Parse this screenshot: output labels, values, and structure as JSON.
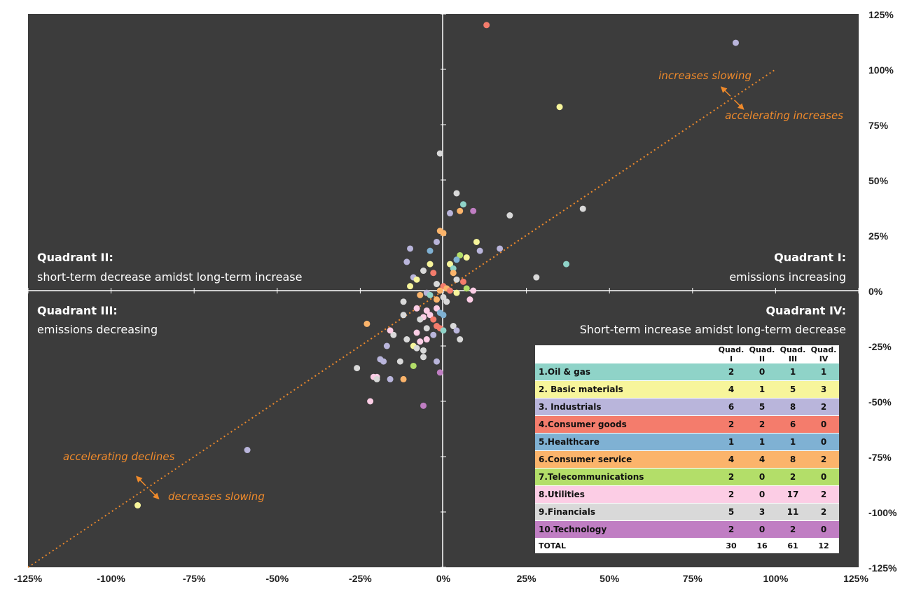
{
  "chart_data": {
    "type": "scatter",
    "xlim": [
      -125,
      125
    ],
    "ylim": [
      -125,
      125
    ],
    "x_ticks": [
      "-125%",
      "-100%",
      "-75%",
      "-50%",
      "-25%",
      "0%",
      "25%",
      "50%",
      "75%",
      "100%",
      "125%"
    ],
    "y_ticks": [
      "125%",
      "100%",
      "75%",
      "50%",
      "25%",
      "0%",
      "-25%",
      "-50%",
      "-75%",
      "-100%",
      "-125%"
    ],
    "reference_line": {
      "x": [
        -125,
        100
      ],
      "y": [
        -125,
        100
      ],
      "style": "dotted",
      "color": "#ef8a2b"
    },
    "quadrants": {
      "q1": {
        "title": "Quadrant I:",
        "desc": "emissions increasing"
      },
      "q2": {
        "title": "Quadrant II:",
        "desc": "short-term decrease amidst long-term increase"
      },
      "q3": {
        "title": "Quadrant III:",
        "desc": "emissions decreasing"
      },
      "q4": {
        "title": "Quadrant IV:",
        "desc": "Short-term increase amidst long-term decrease"
      }
    },
    "annotations": {
      "increases_slowing": "increases slowing",
      "accelerating_increases": "accelerating increases",
      "accelerating_declines": "accelerating declines",
      "decreases_slowing": "decreases slowing"
    },
    "points": [
      {
        "x": 13,
        "y": 120,
        "c": "#f47c6c"
      },
      {
        "x": 88,
        "y": 112,
        "c": "#b9b5db"
      },
      {
        "x": 35,
        "y": 83,
        "c": "#f7f59b"
      },
      {
        "x": -1,
        "y": 62,
        "c": "#d9d9d9"
      },
      {
        "x": 4,
        "y": 44,
        "c": "#d9d9d9"
      },
      {
        "x": 6,
        "y": 39,
        "c": "#8fd3c8"
      },
      {
        "x": 2,
        "y": 35,
        "c": "#b9b5db"
      },
      {
        "x": 9,
        "y": 36,
        "c": "#c07ec3"
      },
      {
        "x": 5,
        "y": 36,
        "c": "#fbb46b"
      },
      {
        "x": 20,
        "y": 34,
        "c": "#d9d9d9"
      },
      {
        "x": 42,
        "y": 37,
        "c": "#d9d9d9"
      },
      {
        "x": -1,
        "y": 27,
        "c": "#fbb46b"
      },
      {
        "x": 0,
        "y": 26,
        "c": "#fbb46b"
      },
      {
        "x": -2,
        "y": 22,
        "c": "#b9b5db"
      },
      {
        "x": 10,
        "y": 22,
        "c": "#f7f59b"
      },
      {
        "x": -10,
        "y": 19,
        "c": "#b9b5db"
      },
      {
        "x": -4,
        "y": 18,
        "c": "#7fb1d3"
      },
      {
        "x": 11,
        "y": 18,
        "c": "#b9b5db"
      },
      {
        "x": 17,
        "y": 19,
        "c": "#b9b5db"
      },
      {
        "x": 5,
        "y": 16,
        "c": "#b3de69"
      },
      {
        "x": 7,
        "y": 15,
        "c": "#f7f59b"
      },
      {
        "x": 4,
        "y": 14,
        "c": "#7fb1d3"
      },
      {
        "x": -11,
        "y": 13,
        "c": "#b9b5db"
      },
      {
        "x": -4,
        "y": 12,
        "c": "#f7f59b"
      },
      {
        "x": 2,
        "y": 12,
        "c": "#f7f59b"
      },
      {
        "x": 3,
        "y": 10,
        "c": "#8fd3c8"
      },
      {
        "x": -6,
        "y": 9,
        "c": "#d9d9d9"
      },
      {
        "x": -3,
        "y": 8,
        "c": "#f47c6c"
      },
      {
        "x": 3,
        "y": 8,
        "c": "#fbb46b"
      },
      {
        "x": 37,
        "y": 12,
        "c": "#8fd3c8"
      },
      {
        "x": -9,
        "y": 6,
        "c": "#b9b5db"
      },
      {
        "x": -8,
        "y": 5,
        "c": "#f7f59b"
      },
      {
        "x": 4,
        "y": 5,
        "c": "#d9d9d9"
      },
      {
        "x": 6,
        "y": 4,
        "c": "#f47c6c"
      },
      {
        "x": 28,
        "y": 6,
        "c": "#d9d9d9"
      },
      {
        "x": -10,
        "y": 2,
        "c": "#f7f59b"
      },
      {
        "x": -2,
        "y": 3,
        "c": "#d9d9d9"
      },
      {
        "x": 0,
        "y": 2,
        "c": "#f47c6c"
      },
      {
        "x": 1,
        "y": 1,
        "c": "#fbb46b"
      },
      {
        "x": -1,
        "y": 0,
        "c": "#fbb46b"
      },
      {
        "x": 2,
        "y": 0,
        "c": "#f47c6c"
      },
      {
        "x": 4,
        "y": -1,
        "c": "#f7f59b"
      },
      {
        "x": 7,
        "y": 1,
        "c": "#b3de69"
      },
      {
        "x": 9,
        "y": 0,
        "c": "#fccde5"
      },
      {
        "x": -5,
        "y": -1,
        "c": "#b9b5db"
      },
      {
        "x": -4,
        "y": -2,
        "c": "#8fd3c8"
      },
      {
        "x": -7,
        "y": -2,
        "c": "#fbb46b"
      },
      {
        "x": -2,
        "y": -4,
        "c": "#fbb46b"
      },
      {
        "x": 0,
        "y": -3,
        "c": "#d9d9d9"
      },
      {
        "x": 1,
        "y": -5,
        "c": "#d9d9d9"
      },
      {
        "x": 8,
        "y": -4,
        "c": "#fccde5"
      },
      {
        "x": -12,
        "y": -5,
        "c": "#d9d9d9"
      },
      {
        "x": -8,
        "y": -8,
        "c": "#fccde5"
      },
      {
        "x": -5,
        "y": -9,
        "c": "#fccde5"
      },
      {
        "x": -2,
        "y": -8,
        "c": "#fccde5"
      },
      {
        "x": -6,
        "y": -12,
        "c": "#fccde5"
      },
      {
        "x": -4,
        "y": -11,
        "c": "#fccde5"
      },
      {
        "x": -1,
        "y": -10,
        "c": "#7fb1d3"
      },
      {
        "x": 0,
        "y": -11,
        "c": "#7fb1d3"
      },
      {
        "x": -3,
        "y": -13,
        "c": "#f47c6c"
      },
      {
        "x": -7,
        "y": -13,
        "c": "#d9d9d9"
      },
      {
        "x": -12,
        "y": -11,
        "c": "#d9d9d9"
      },
      {
        "x": -2,
        "y": -16,
        "c": "#f47c6c"
      },
      {
        "x": -1,
        "y": -17,
        "c": "#f47c6c"
      },
      {
        "x": 0,
        "y": -18,
        "c": "#8fd3c8"
      },
      {
        "x": 3,
        "y": -16,
        "c": "#d9d9d9"
      },
      {
        "x": 4,
        "y": -18,
        "c": "#b9b5db"
      },
      {
        "x": -5,
        "y": -17,
        "c": "#d9d9d9"
      },
      {
        "x": -3,
        "y": -20,
        "c": "#b9b5db"
      },
      {
        "x": -8,
        "y": -19,
        "c": "#fccde5"
      },
      {
        "x": -15,
        "y": -20,
        "c": "#d9d9d9"
      },
      {
        "x": -16,
        "y": -18,
        "c": "#fccde5"
      },
      {
        "x": -11,
        "y": -22,
        "c": "#d9d9d9"
      },
      {
        "x": -7,
        "y": -23,
        "c": "#fccde5"
      },
      {
        "x": -5,
        "y": -22,
        "c": "#fccde5"
      },
      {
        "x": 5,
        "y": -22,
        "c": "#d9d9d9"
      },
      {
        "x": -9,
        "y": -25,
        "c": "#f7f59b"
      },
      {
        "x": -8,
        "y": -26,
        "c": "#d9d9d9"
      },
      {
        "x": -17,
        "y": -25,
        "c": "#b9b5db"
      },
      {
        "x": -6,
        "y": -27,
        "c": "#d9d9d9"
      },
      {
        "x": -6,
        "y": -30,
        "c": "#d9d9d9"
      },
      {
        "x": -2,
        "y": -32,
        "c": "#b9b5db"
      },
      {
        "x": -19,
        "y": -31,
        "c": "#b9b5db"
      },
      {
        "x": -18,
        "y": -32,
        "c": "#b9b5db"
      },
      {
        "x": -13,
        "y": -32,
        "c": "#d9d9d9"
      },
      {
        "x": -9,
        "y": -34,
        "c": "#b3de69"
      },
      {
        "x": -1,
        "y": -37,
        "c": "#c07ec3"
      },
      {
        "x": -26,
        "y": -35,
        "c": "#d9d9d9"
      },
      {
        "x": -21,
        "y": -39,
        "c": "#fccde5"
      },
      {
        "x": -20,
        "y": -39,
        "c": "#fccde5"
      },
      {
        "x": -20,
        "y": -40,
        "c": "#d9d9d9"
      },
      {
        "x": -16,
        "y": -40,
        "c": "#b9b5db"
      },
      {
        "x": -12,
        "y": -40,
        "c": "#fbb46b"
      },
      {
        "x": -22,
        "y": -50,
        "c": "#fccde5"
      },
      {
        "x": -6,
        "y": -52,
        "c": "#c07ec3"
      },
      {
        "x": -23,
        "y": -15,
        "c": "#fbb46b"
      },
      {
        "x": -59,
        "y": -72,
        "c": "#b9b5db"
      },
      {
        "x": -92,
        "y": -97,
        "c": "#f7f59b"
      }
    ],
    "table": {
      "headers": [
        "",
        "Quad. I",
        "Quad. II",
        "Quad. III",
        "Quad. IV"
      ],
      "rows": [
        {
          "label": "1.Oil & gas",
          "color": "#8fd3c8",
          "q1": "2",
          "q2": "0",
          "q3": "1",
          "q4": "1"
        },
        {
          "label": "2. Basic materials",
          "color": "#f7f59b",
          "q1": "4",
          "q2": "1",
          "q3": "5",
          "q4": "3"
        },
        {
          "label": "3. Industrials",
          "color": "#b9b5db",
          "q1": "6",
          "q2": "5",
          "q3": "8",
          "q4": "2"
        },
        {
          "label": "4.Consumer goods",
          "color": "#f47c6c",
          "q1": "2",
          "q2": "2",
          "q3": "6",
          "q4": "0"
        },
        {
          "label": "5.Healthcare",
          "color": "#7fb1d3",
          "q1": "1",
          "q2": "1",
          "q3": "1",
          "q4": "0"
        },
        {
          "label": "6.Consumer service",
          "color": "#fbb46b",
          "q1": "4",
          "q2": "4",
          "q3": "8",
          "q4": "2"
        },
        {
          "label": "7.Telecommunications",
          "color": "#b3de69",
          "q1": "2",
          "q2": "0",
          "q3": "2",
          "q4": "0"
        },
        {
          "label": "8.Utilities",
          "color": "#fccde5",
          "q1": "2",
          "q2": "0",
          "q3": "17",
          "q4": "2"
        },
        {
          "label": "9.Financials",
          "color": "#d9d9d9",
          "q1": "5",
          "q2": "3",
          "q3": "11",
          "q4": "2"
        },
        {
          "label": "10.Technology",
          "color": "#c07ec3",
          "q1": "2",
          "q2": "0",
          "q3": "2",
          "q4": "0"
        }
      ],
      "total": {
        "label": "TOTAL",
        "q1": "30",
        "q2": "16",
        "q3": "61",
        "q4": "12"
      }
    },
    "colors": {
      "plot_bg": "#3c3c3c",
      "axis": "#ffffff",
      "accent": "#ef8a2b"
    }
  }
}
